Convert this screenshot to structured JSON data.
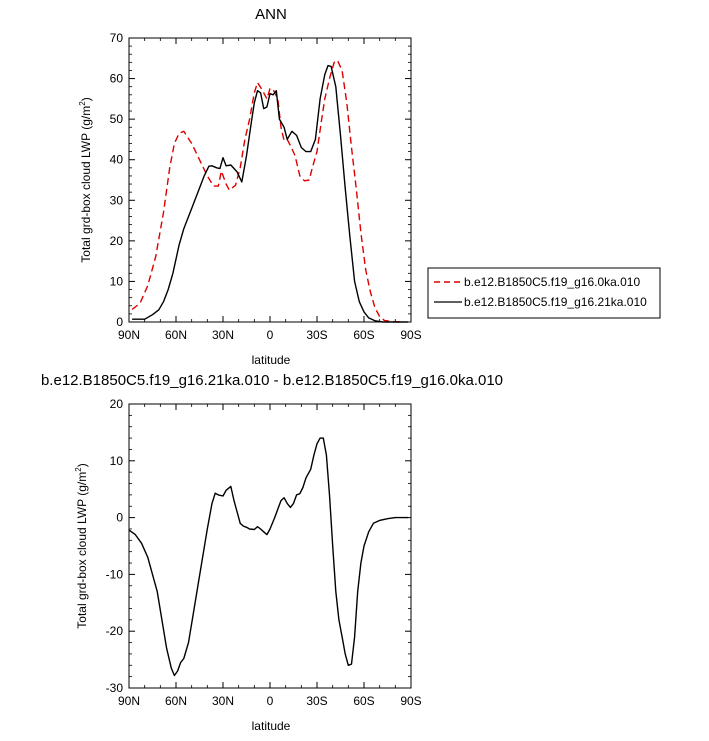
{
  "chart_data": [
    {
      "type": "line",
      "title": "ANN",
      "xlabel": "latitude",
      "ylabel": "Total grd-box cloud LWP (g/m²)",
      "ylabel_parts": {
        "main": "Total grd-box cloud LWP (g/m",
        "sup": "2",
        "close": ")"
      },
      "xlim": [
        90,
        -90
      ],
      "ylim": [
        0,
        70
      ],
      "x_ticks": [
        90,
        60,
        30,
        0,
        -30,
        -60,
        -90
      ],
      "x_tick_labels": [
        "90N",
        "60N",
        "30N",
        "0",
        "30S",
        "60S",
        "90S"
      ],
      "y_ticks": [
        0,
        10,
        20,
        30,
        40,
        50,
        60,
        70
      ],
      "y_tick_labels": [
        "0",
        "10",
        "20",
        "30",
        "40",
        "50",
        "60",
        "70"
      ],
      "legend_placement": "right",
      "series": [
        {
          "name": "b.e12.B1850C5.f19_g16.0ka.010",
          "color": "#dd0000",
          "dash": "dashed",
          "points": [
            [
              88,
              3.1
            ],
            [
              83,
              4.6
            ],
            [
              78,
              9
            ],
            [
              73,
              16
            ],
            [
              68,
              27
            ],
            [
              64,
              38
            ],
            [
              61,
              44
            ],
            [
              58,
              46.5
            ],
            [
              55,
              47
            ],
            [
              50,
              44
            ],
            [
              45,
              40
            ],
            [
              40,
              36
            ],
            [
              36,
              33.5
            ],
            [
              33,
              33.5
            ],
            [
              31,
              37.2
            ],
            [
              28,
              34
            ],
            [
              26,
              32.5
            ],
            [
              22,
              33.7
            ],
            [
              19,
              38
            ],
            [
              16,
              45
            ],
            [
              13,
              50
            ],
            [
              10,
              56.5
            ],
            [
              8,
              59
            ],
            [
              5,
              57.2
            ],
            [
              2,
              55
            ],
            [
              0,
              57.5
            ],
            [
              -2,
              57.3
            ],
            [
              -5,
              55
            ],
            [
              -7,
              48
            ],
            [
              -9,
              44.7
            ],
            [
              -11,
              45
            ],
            [
              -13,
              43.5
            ],
            [
              -16,
              41
            ],
            [
              -19,
              36
            ],
            [
              -22,
              34.8
            ],
            [
              -25,
              35
            ],
            [
              -27,
              38
            ],
            [
              -30,
              42
            ],
            [
              -33,
              50
            ],
            [
              -35,
              55
            ],
            [
              -38,
              60
            ],
            [
              -41,
              64
            ],
            [
              -43,
              64.5
            ],
            [
              -46,
              62
            ],
            [
              -49,
              54
            ],
            [
              -52,
              43
            ],
            [
              -55,
              33
            ],
            [
              -58,
              22
            ],
            [
              -61,
              13
            ],
            [
              -64,
              7.5
            ],
            [
              -67,
              3.5
            ],
            [
              -70,
              1.3
            ],
            [
              -73,
              0.4
            ],
            [
              -78,
              0.1
            ],
            [
              -85,
              0
            ]
          ]
        },
        {
          "name": "b.e12.B1850C5.f19_g16.21ka.010",
          "color": "#000000",
          "dash": "solid",
          "points": [
            [
              88,
              0.7
            ],
            [
              80,
              0.7
            ],
            [
              75,
              1.8
            ],
            [
              71,
              3
            ],
            [
              68,
              5
            ],
            [
              65,
              8
            ],
            [
              62,
              12
            ],
            [
              58,
              19
            ],
            [
              55,
              23
            ],
            [
              50,
              28
            ],
            [
              45,
              33
            ],
            [
              42,
              36
            ],
            [
              39,
              38.4
            ],
            [
              37,
              38.5
            ],
            [
              34,
              38
            ],
            [
              32,
              37.8
            ],
            [
              30,
              40.5
            ],
            [
              28,
              38.5
            ],
            [
              25,
              38.7
            ],
            [
              21,
              37
            ],
            [
              18,
              34.5
            ],
            [
              15,
              41
            ],
            [
              12,
              49
            ],
            [
              10,
              54
            ],
            [
              8,
              57
            ],
            [
              6,
              56.5
            ],
            [
              4,
              52.6
            ],
            [
              2,
              53
            ],
            [
              0,
              56.3
            ],
            [
              -2,
              56
            ],
            [
              -4,
              57
            ],
            [
              -6,
              50
            ],
            [
              -9,
              48
            ],
            [
              -11,
              45
            ],
            [
              -14,
              47
            ],
            [
              -17,
              46
            ],
            [
              -20,
              43
            ],
            [
              -23,
              42
            ],
            [
              -26,
              42
            ],
            [
              -29,
              45
            ],
            [
              -32,
              55
            ],
            [
              -35,
              61
            ],
            [
              -37,
              63.2
            ],
            [
              -39,
              63
            ],
            [
              -42,
              58
            ],
            [
              -45,
              46
            ],
            [
              -48,
              33
            ],
            [
              -51,
              21
            ],
            [
              -54,
              10
            ],
            [
              -57,
              5
            ],
            [
              -60,
              2.5
            ],
            [
              -63,
              1
            ],
            [
              -67,
              0.3
            ],
            [
              -72,
              0
            ],
            [
              -88,
              0
            ]
          ]
        }
      ]
    },
    {
      "type": "line",
      "title": "b.e12.B1850C5.f19_g16.21ka.010 - b.e12.B1850C5.f19_g16.0ka.010",
      "xlabel": "latitude",
      "ylabel": "Total grd-box cloud LWP (g/m²)",
      "ylabel_parts": {
        "main": "Total grd-box cloud LWP (g/m",
        "sup": "2",
        "close": ")"
      },
      "xlim": [
        90,
        -90
      ],
      "ylim": [
        -30,
        20
      ],
      "x_ticks": [
        90,
        60,
        30,
        0,
        -30,
        -60,
        -90
      ],
      "x_tick_labels": [
        "90N",
        "60N",
        "30N",
        "0",
        "30S",
        "60S",
        "90S"
      ],
      "y_ticks": [
        -30,
        -20,
        -10,
        0,
        10,
        20
      ],
      "y_tick_labels": [
        "-30",
        "-20",
        "-10",
        "0",
        "10",
        "20"
      ],
      "series": [
        {
          "color": "#000000",
          "dash": "solid",
          "points": [
            [
              90,
              -2.2
            ],
            [
              86,
              -3
            ],
            [
              82,
              -4.5
            ],
            [
              78,
              -7
            ],
            [
              75,
              -10
            ],
            [
              72,
              -13
            ],
            [
              69,
              -18
            ],
            [
              66,
              -23
            ],
            [
              63,
              -26.5
            ],
            [
              61,
              -27.8
            ],
            [
              59,
              -27
            ],
            [
              57,
              -25.5
            ],
            [
              55,
              -24.8
            ],
            [
              52,
              -22
            ],
            [
              49,
              -17
            ],
            [
              46,
              -12
            ],
            [
              43,
              -7
            ],
            [
              40,
              -2
            ],
            [
              37,
              2.5
            ],
            [
              35,
              4.3
            ],
            [
              33,
              4
            ],
            [
              30,
              3.8
            ],
            [
              28,
              4.8
            ],
            [
              25,
              5.5
            ],
            [
              23,
              3
            ],
            [
              21,
              1
            ],
            [
              19,
              -1
            ],
            [
              17,
              -1.5
            ],
            [
              15,
              -1.7
            ],
            [
              13,
              -2
            ],
            [
              10,
              -2.1
            ],
            [
              8,
              -1.6
            ],
            [
              6,
              -2
            ],
            [
              4,
              -2.5
            ],
            [
              2,
              -3
            ],
            [
              0,
              -2
            ],
            [
              -3,
              0
            ],
            [
              -5,
              1.5
            ],
            [
              -7,
              3
            ],
            [
              -9,
              3.5
            ],
            [
              -11,
              2.5
            ],
            [
              -13,
              1.8
            ],
            [
              -15,
              2.5
            ],
            [
              -17,
              4
            ],
            [
              -19,
              4.2
            ],
            [
              -21,
              5.3
            ],
            [
              -23,
              7
            ],
            [
              -26,
              8.5
            ],
            [
              -28,
              11
            ],
            [
              -30,
              13
            ],
            [
              -32,
              14
            ],
            [
              -34,
              14
            ],
            [
              -36,
              11
            ],
            [
              -38,
              4
            ],
            [
              -40,
              -5
            ],
            [
              -42,
              -13
            ],
            [
              -44,
              -18
            ],
            [
              -46,
              -21
            ],
            [
              -48,
              -24
            ],
            [
              -50,
              -26
            ],
            [
              -52,
              -25.8
            ],
            [
              -54,
              -21
            ],
            [
              -56,
              -13
            ],
            [
              -58,
              -8
            ],
            [
              -60,
              -5
            ],
            [
              -63,
              -2.5
            ],
            [
              -66,
              -1
            ],
            [
              -70,
              -0.5
            ],
            [
              -75,
              -0.2
            ],
            [
              -80,
              0
            ],
            [
              -88,
              0
            ]
          ]
        }
      ]
    }
  ]
}
